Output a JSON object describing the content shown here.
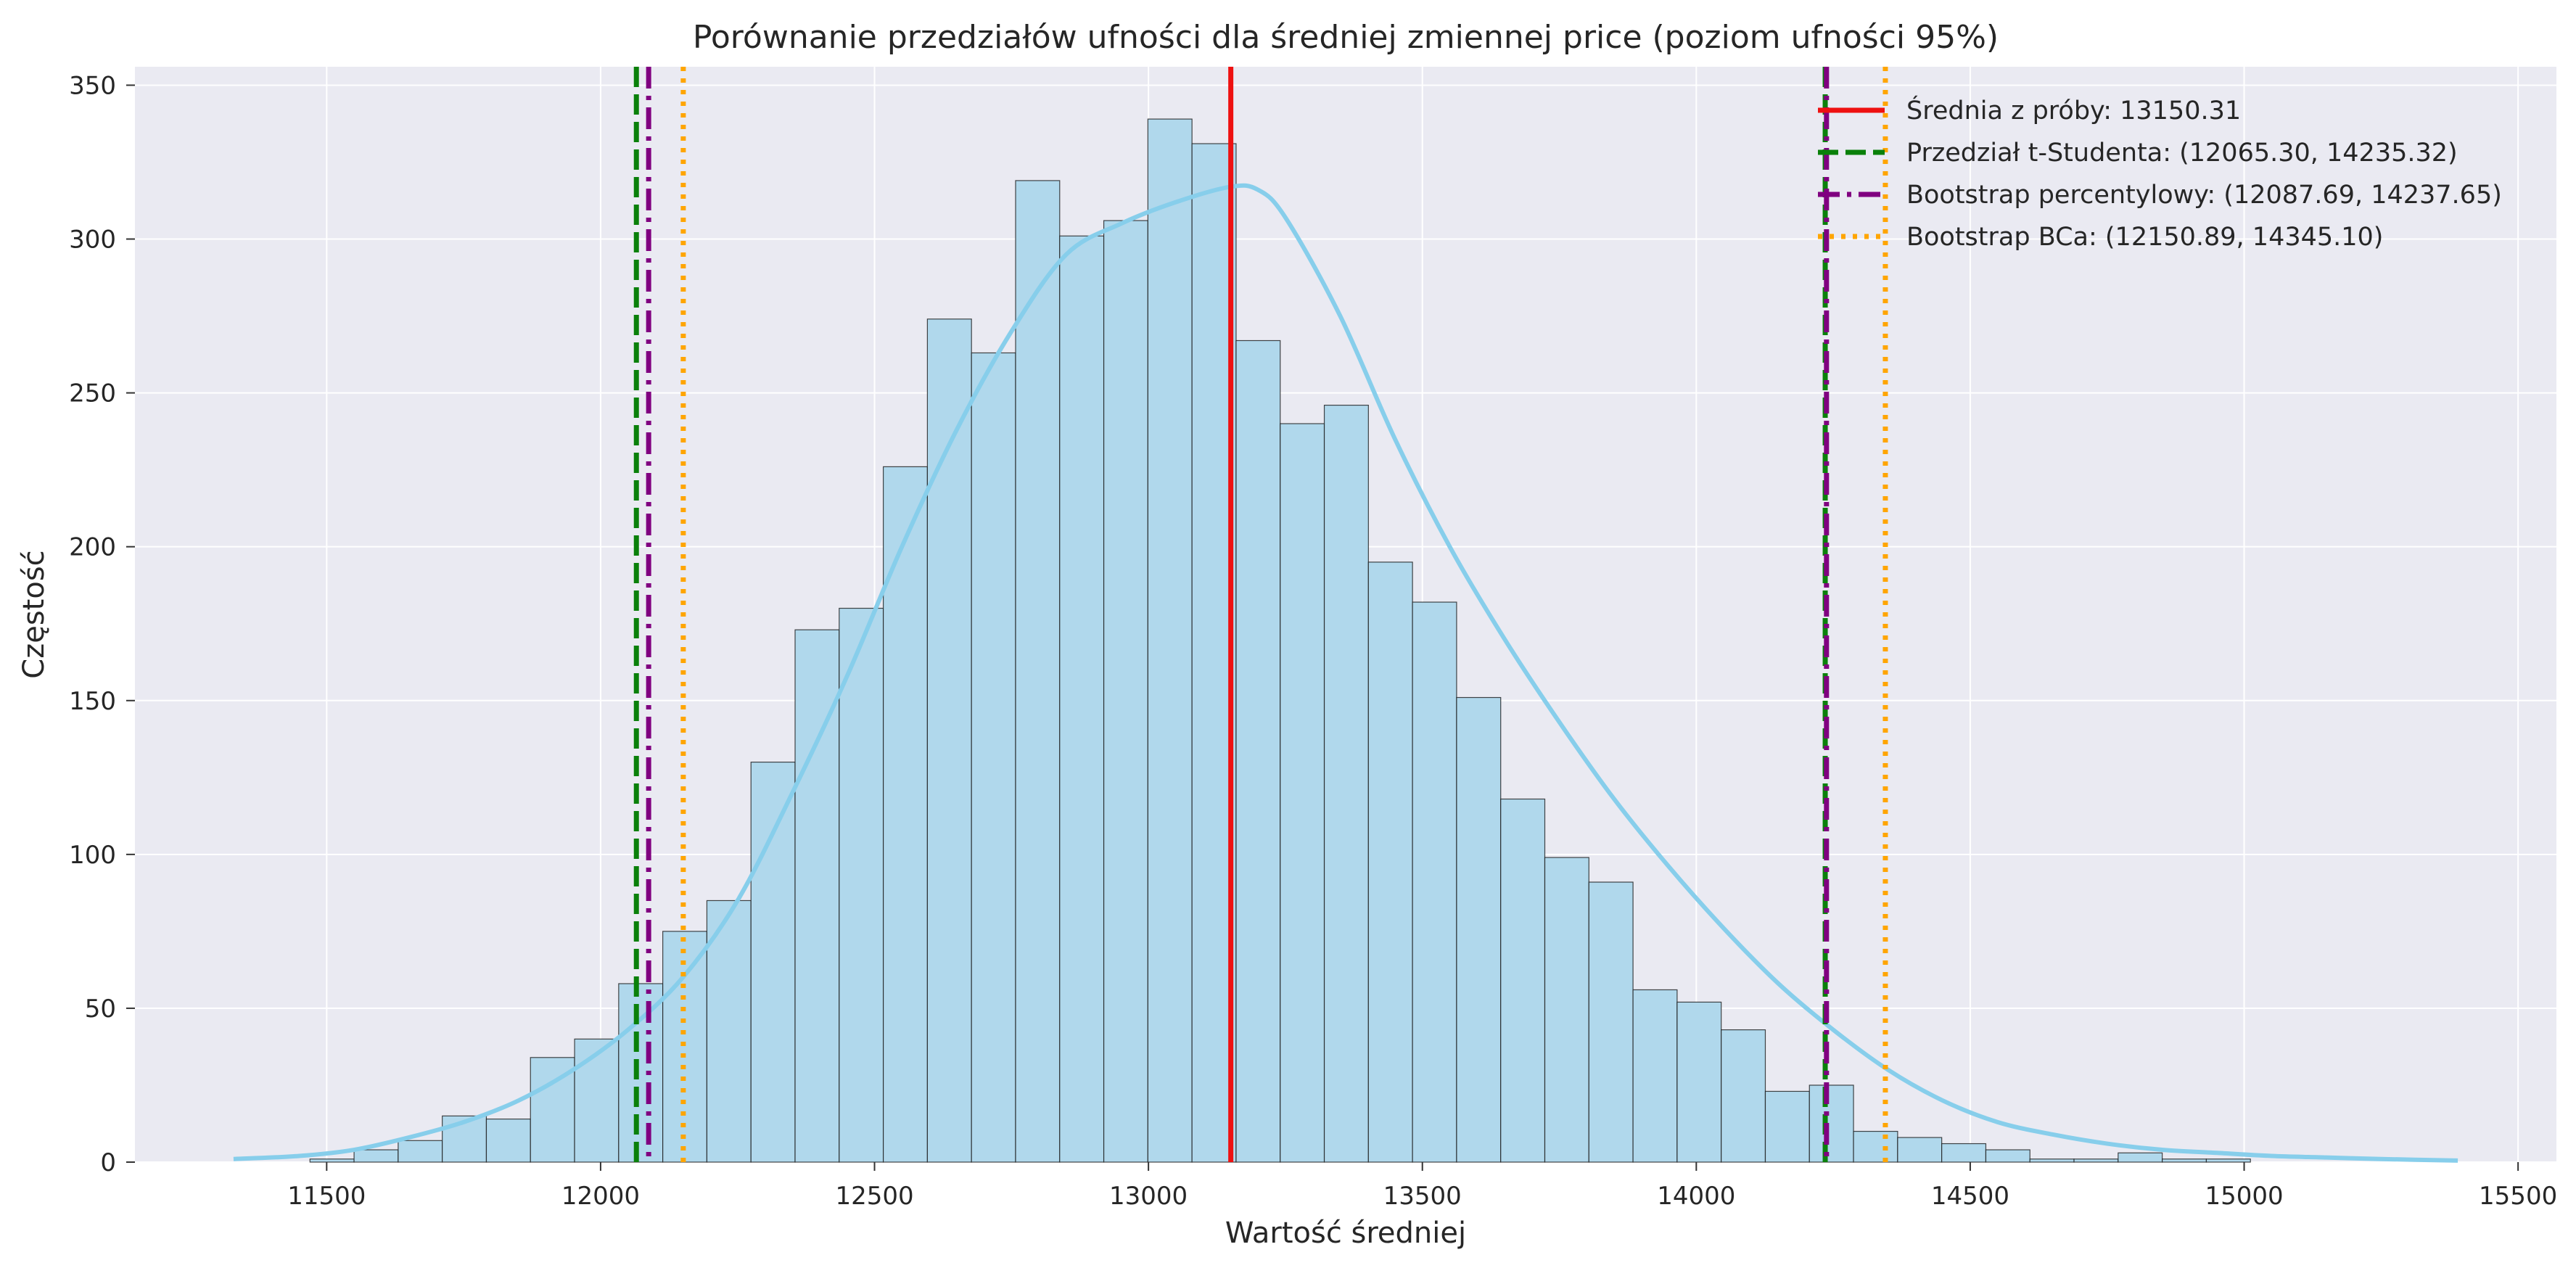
{
  "chart_data": {
    "type": "bar",
    "title": "Porównanie przedziałów ufności dla średniej zmiennej price (poziom ufności 95%)",
    "xlabel": "Wartość średniej",
    "ylabel": "Częstość",
    "xlim": [
      11150,
      15570
    ],
    "ylim": [
      0,
      356
    ],
    "x_ticks": [
      11500,
      12000,
      12500,
      13000,
      13500,
      14000,
      14500,
      15000,
      15500
    ],
    "y_ticks": [
      0,
      50,
      100,
      150,
      200,
      250,
      300,
      350
    ],
    "grid": true,
    "legend_position": "top-right",
    "histogram": {
      "bin_width": 80.5,
      "bins_start": [
        11389,
        11469.5,
        11550,
        11630.5,
        11711,
        11791.5,
        11872,
        11952.5,
        12033,
        12113.5,
        12194,
        12274.5,
        12355,
        12435.5,
        12516,
        12596.5,
        12677,
        12757.5,
        12838,
        12918.5,
        12999,
        13079.5,
        13160,
        13240.5,
        13321,
        13401.5,
        13482,
        13562.5,
        13643,
        13723.5,
        13804,
        13884.5,
        13965,
        14045.5,
        14126,
        14206.5,
        14287,
        14367.5,
        14448,
        14528.5,
        14609,
        14689.5,
        14770,
        14850.5,
        14931,
        15011.5,
        15092,
        15172.5
      ],
      "counts": [
        0,
        1,
        4,
        7,
        15,
        14,
        34,
        40,
        58,
        75,
        85,
        130,
        173,
        180,
        226,
        274,
        263,
        319,
        301,
        306,
        339,
        331,
        267,
        240,
        246,
        195,
        182,
        151,
        118,
        99,
        91,
        56,
        52,
        43,
        23,
        25,
        10,
        8,
        6,
        4,
        1,
        1,
        3,
        1,
        1,
        0,
        0,
        0
      ]
    },
    "kde": {
      "x": [
        11330,
        11450,
        11550,
        11650,
        11750,
        11850,
        11950,
        12050,
        12150,
        12250,
        12350,
        12450,
        12550,
        12650,
        12750,
        12850,
        12950,
        13050,
        13150,
        13200,
        13250,
        13350,
        13450,
        13550,
        13650,
        13750,
        13850,
        13950,
        14050,
        14150,
        14250,
        14350,
        14450,
        14550,
        14650,
        14750,
        14850,
        14950,
        15050,
        15150,
        15250,
        15390
      ],
      "y": [
        1,
        2,
        4,
        8,
        13,
        20,
        30,
        43,
        60,
        85,
        120,
        158,
        200,
        238,
        270,
        295,
        305,
        312,
        317,
        316,
        307,
        275,
        235,
        200,
        170,
        143,
        118,
        96,
        76,
        58,
        43,
        30,
        20,
        13,
        9,
        6,
        4,
        3,
        2,
        1.5,
        1,
        0.5
      ]
    },
    "vlines": [
      {
        "label": "Średnia z próby: 13150.31",
        "values": [
          13150.31
        ],
        "color": "#ee1111",
        "style": "solid"
      },
      {
        "label": "Przedział t-Studenta: (12065.30, 14235.32)",
        "values": [
          12065.3,
          14235.32
        ],
        "color": "#0a800a",
        "style": "dashed"
      },
      {
        "label": "Bootstrap percentylowy: (12087.69, 14237.65)",
        "values": [
          12087.69,
          14237.65
        ],
        "color": "#800080",
        "style": "dashdot"
      },
      {
        "label": "Bootstrap BCa: (12150.89, 14345.10)",
        "values": [
          12150.89,
          14345.1
        ],
        "color": "#ffa500",
        "style": "dotted"
      }
    ],
    "colors": {
      "plot_background": "#eaeaf2",
      "bar_fill": "#b0d8ec",
      "bar_edge": "#1a1a1a",
      "kde_line": "#87ceeb",
      "grid": "#ffffff"
    }
  }
}
